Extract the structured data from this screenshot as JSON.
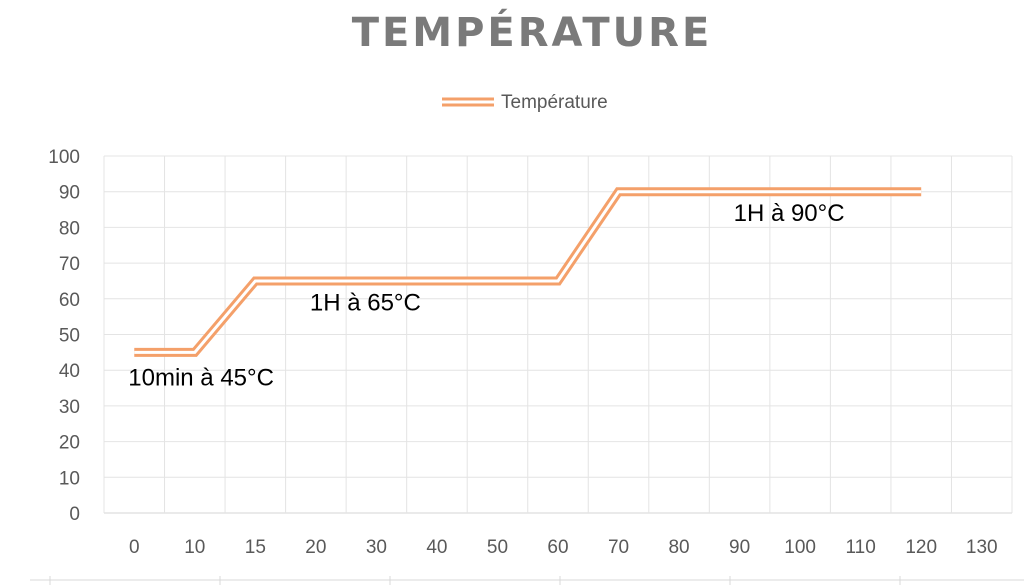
{
  "chart_data": {
    "type": "line",
    "title": "TEMPÉRATURE",
    "xlabel": "",
    "ylabel": "",
    "legend_position": "top-center",
    "grid": true,
    "x_axis_type": "category",
    "categories": [
      "0",
      "10",
      "15",
      "20",
      "30",
      "40",
      "50",
      "60",
      "70",
      "80",
      "90",
      "100",
      "110",
      "120",
      "130"
    ],
    "ylim": [
      0,
      100
    ],
    "yticks": [
      "0",
      "10",
      "20",
      "30",
      "40",
      "50",
      "60",
      "70",
      "80",
      "90",
      "100"
    ],
    "series": [
      {
        "name": "Température",
        "color": "#f4a06a",
        "values": [
          45,
          45,
          65,
          65,
          65,
          65,
          65,
          65,
          90,
          90,
          90,
          90,
          90,
          90,
          null
        ]
      }
    ],
    "annotations": [
      {
        "text": "10min à 45°C",
        "x": "0",
        "y": 38
      },
      {
        "text": "1H à 65°C",
        "x": "20",
        "y": 59
      },
      {
        "text": "1H à 90°C",
        "x": "90",
        "y": 84
      }
    ]
  }
}
